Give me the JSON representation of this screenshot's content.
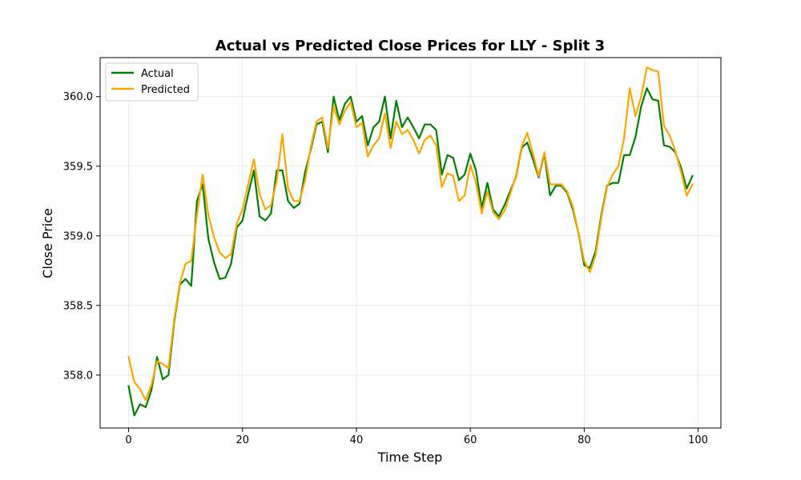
{
  "chart_data": {
    "type": "line",
    "title": "Actual vs Predicted Close Prices for LLY - Split 3",
    "xlabel": "Time Step",
    "ylabel": "Close Price",
    "xlim": [
      -5,
      104
    ],
    "ylim": [
      357.62,
      360.28
    ],
    "xticks": [
      0,
      20,
      40,
      60,
      80,
      100
    ],
    "xtick_labels": [
      "0",
      "20",
      "40",
      "60",
      "80",
      "100"
    ],
    "yticks": [
      358.0,
      358.5,
      359.0,
      359.5,
      360.0
    ],
    "ytick_labels": [
      "358.0",
      "358.5",
      "359.0",
      "359.5",
      "360.0"
    ],
    "grid": true,
    "legend_position": "top-left",
    "series": [
      {
        "name": "Actual",
        "color": "#008000",
        "values": [
          357.92,
          357.71,
          357.79,
          357.77,
          357.89,
          358.13,
          357.97,
          358.0,
          358.38,
          358.65,
          358.69,
          358.64,
          359.25,
          359.37,
          358.98,
          358.81,
          358.69,
          358.7,
          358.8,
          359.06,
          359.11,
          359.3,
          359.47,
          359.14,
          359.11,
          359.16,
          359.47,
          359.47,
          359.25,
          359.2,
          359.23,
          359.46,
          359.62,
          359.8,
          359.82,
          359.6,
          360.0,
          359.83,
          359.95,
          360.0,
          359.82,
          359.86,
          359.65,
          359.78,
          359.82,
          360.0,
          359.7,
          359.97,
          359.78,
          359.85,
          359.78,
          359.7,
          359.8,
          359.8,
          359.76,
          359.44,
          359.58,
          359.56,
          359.4,
          359.44,
          359.59,
          359.47,
          359.2,
          359.38,
          359.19,
          359.14,
          359.22,
          359.32,
          359.42,
          359.63,
          359.67,
          359.55,
          359.42,
          359.59,
          359.29,
          359.36,
          359.36,
          359.31,
          359.19,
          359.02,
          358.79,
          358.77,
          358.89,
          359.15,
          359.36,
          359.38,
          359.38,
          359.58,
          359.58,
          359.71,
          359.93,
          360.06,
          359.98,
          359.97,
          359.65,
          359.64,
          359.6,
          359.49,
          359.34,
          359.43
        ]
      },
      {
        "name": "Predicted",
        "color": "#FFA500",
        "values": [
          358.13,
          357.95,
          357.9,
          357.82,
          357.93,
          358.1,
          358.08,
          358.05,
          358.4,
          358.66,
          358.8,
          358.82,
          359.15,
          359.44,
          359.15,
          358.99,
          358.88,
          358.84,
          358.87,
          359.09,
          359.19,
          359.37,
          359.55,
          359.3,
          359.19,
          359.22,
          359.39,
          359.73,
          359.34,
          359.25,
          359.25,
          359.4,
          359.64,
          359.82,
          359.85,
          359.63,
          359.93,
          359.8,
          359.9,
          359.96,
          359.78,
          359.81,
          359.57,
          359.65,
          359.7,
          359.88,
          359.63,
          359.82,
          359.73,
          359.76,
          359.69,
          359.59,
          359.69,
          359.72,
          359.65,
          359.35,
          359.45,
          359.43,
          359.25,
          359.29,
          359.51,
          359.38,
          359.16,
          359.32,
          359.17,
          359.12,
          359.18,
          359.3,
          359.43,
          359.64,
          359.74,
          359.59,
          359.43,
          359.6,
          359.37,
          359.37,
          359.37,
          359.32,
          359.21,
          359.02,
          358.82,
          358.74,
          358.86,
          359.13,
          359.35,
          359.44,
          359.5,
          359.7,
          360.06,
          359.86,
          360.0,
          360.21,
          360.19,
          360.18,
          359.79,
          359.72,
          359.61,
          359.46,
          359.29,
          359.37
        ]
      }
    ]
  }
}
